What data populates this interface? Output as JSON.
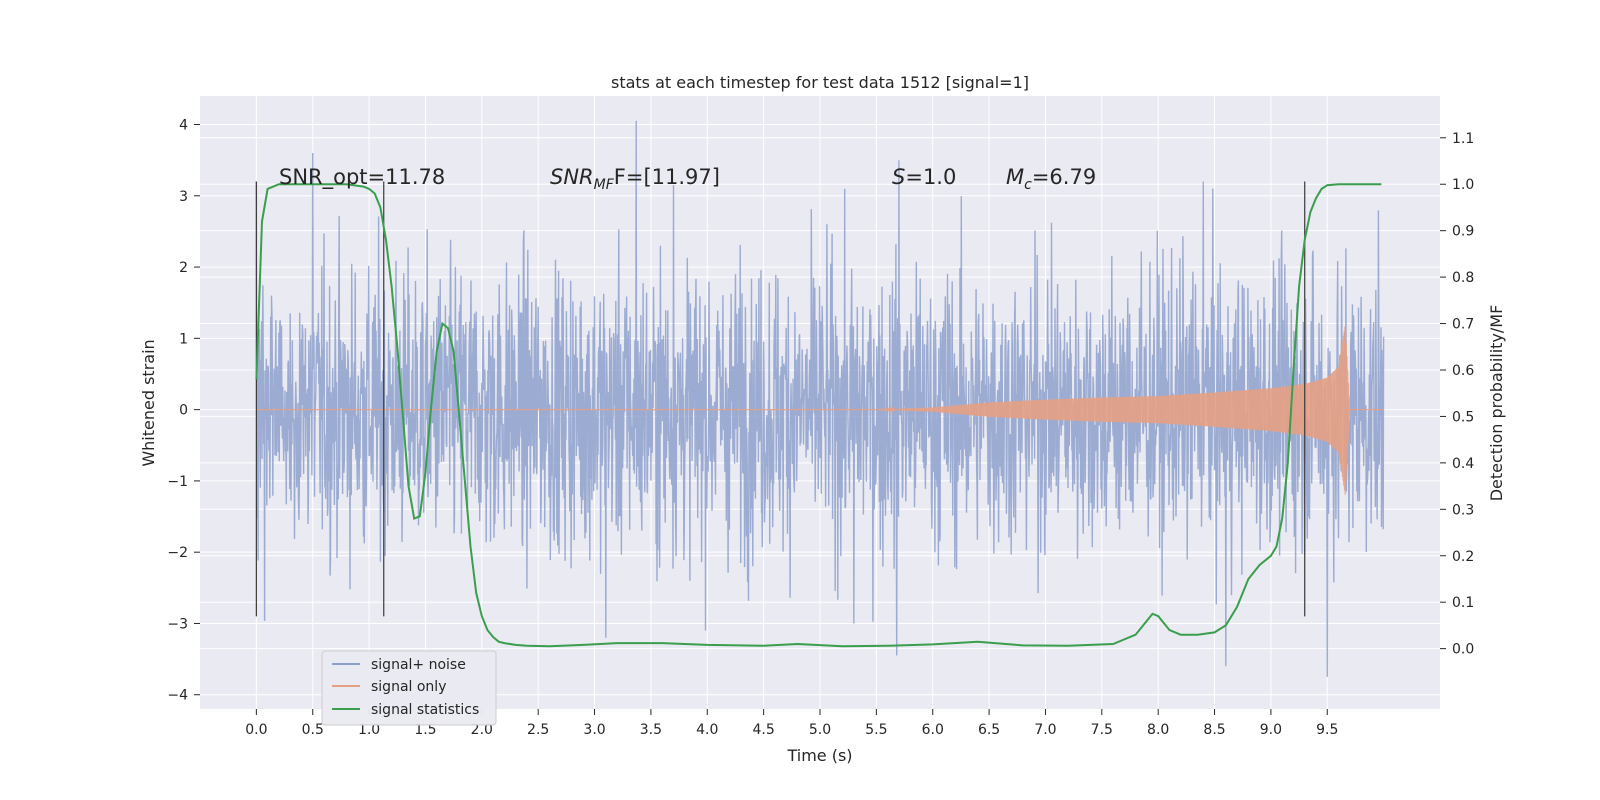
{
  "chart_data": {
    "type": "line",
    "title": "stats at each timestep for test data 1512 [signal=1]",
    "xlabel": "Time (s)",
    "ylabel": "Whitened strain",
    "y2label": "Detection probability/MF",
    "xlim": [
      -0.5,
      10.5
    ],
    "ylim": [
      -4.2,
      4.4
    ],
    "y2lim": [
      -0.13,
      1.19
    ],
    "xticks": [
      "0.0",
      "0.5",
      "1.0",
      "1.5",
      "2.0",
      "2.5",
      "3.0",
      "3.5",
      "4.0",
      "4.5",
      "5.0",
      "5.5",
      "6.0",
      "6.5",
      "7.0",
      "7.5",
      "8.0",
      "8.5",
      "9.0",
      "9.5"
    ],
    "yticks": [
      "4",
      "3",
      "2",
      "1",
      "0",
      "−1",
      "−2",
      "−3",
      "−4"
    ],
    "y2ticks": [
      "1.1",
      "1.0",
      "0.9",
      "0.8",
      "0.7",
      "0.6",
      "0.5",
      "0.4",
      "0.3",
      "0.2",
      "0.1",
      "0.0"
    ],
    "grid": true,
    "legend": {
      "placement": "lower-left",
      "entries": [
        {
          "name": "signal+ noise",
          "color": "#8da0cb"
        },
        {
          "name": "signal only",
          "color": "#e5a084"
        },
        {
          "name": "signal statistics",
          "color": "#3a9e4d"
        }
      ]
    },
    "annotations": {
      "snr_opt": "SNR_opt=11.78",
      "snr_mf_main": "SNR",
      "snr_mf_sub": "MF",
      "snr_mf_rest": "F=[11.97]",
      "s_main": "S",
      "s_rest": "=1.0",
      "mc_main": "M",
      "mc_sub": "c",
      "mc_rest": "=6.79"
    },
    "vertical_lines_x": [
      0.0,
      1.13,
      9.3
    ],
    "vertical_lines_range": [
      -2.9,
      3.2
    ],
    "series": [
      {
        "name": "signal+ noise",
        "color": "#8da0cb",
        "x_range": [
          0.0,
          10.0
        ],
        "envelope_1sigma": 1.37,
        "annotated_extremes": [
          {
            "x": 0.0,
            "y": 3.2
          },
          {
            "x": 0.5,
            "y": 3.6
          },
          {
            "x": 3.37,
            "y": 4.05
          },
          {
            "x": 3.7,
            "y": 3.15
          },
          {
            "x": 5.7,
            "y": 3.5
          },
          {
            "x": 8.4,
            "y": 3.2
          },
          {
            "x": 3.1,
            "y": -3.2
          },
          {
            "x": 5.3,
            "y": -3.0
          },
          {
            "x": 5.68,
            "y": -3.45
          },
          {
            "x": 8.6,
            "y": -3.6
          },
          {
            "x": 9.5,
            "y": -3.75
          }
        ]
      },
      {
        "name": "signal only",
        "color": "#e5a084",
        "type": "chirp",
        "points": [
          {
            "x": 0.0,
            "amp": 0.0
          },
          {
            "x": 5.5,
            "amp": 0.0
          },
          {
            "x": 6.0,
            "amp": 0.03
          },
          {
            "x": 6.5,
            "amp": 0.1
          },
          {
            "x": 7.0,
            "amp": 0.14
          },
          {
            "x": 7.5,
            "amp": 0.17
          },
          {
            "x": 8.0,
            "amp": 0.19
          },
          {
            "x": 8.5,
            "amp": 0.24
          },
          {
            "x": 9.0,
            "amp": 0.3
          },
          {
            "x": 9.3,
            "amp": 0.36
          },
          {
            "x": 9.5,
            "amp": 0.45
          },
          {
            "x": 9.6,
            "amp": 0.6
          },
          {
            "x": 9.66,
            "amp": 1.2
          },
          {
            "x": 9.7,
            "amp": 0.0
          },
          {
            "x": 10.0,
            "amp": 0.0
          }
        ]
      },
      {
        "name": "signal statistics",
        "color": "#3a9e4d",
        "axis": "right",
        "x": [
          0.0,
          0.05,
          0.1,
          0.15,
          0.2,
          0.3,
          0.5,
          0.8,
          0.95,
          1.0,
          1.05,
          1.1,
          1.15,
          1.2,
          1.25,
          1.3,
          1.35,
          1.4,
          1.45,
          1.5,
          1.55,
          1.6,
          1.65,
          1.7,
          1.75,
          1.8,
          1.85,
          1.9,
          1.95,
          2.0,
          2.05,
          2.1,
          2.15,
          2.2,
          2.3,
          2.4,
          2.6,
          2.9,
          3.2,
          3.6,
          4.0,
          4.5,
          4.8,
          5.2,
          5.6,
          6.0,
          6.4,
          6.8,
          7.2,
          7.6,
          7.8,
          7.9,
          7.95,
          8.0,
          8.1,
          8.2,
          8.35,
          8.5,
          8.6,
          8.7,
          8.8,
          8.9,
          9.0,
          9.05,
          9.1,
          9.15,
          9.2,
          9.25,
          9.3,
          9.35,
          9.4,
          9.45,
          9.5,
          9.6,
          9.8,
          9.98
        ],
        "y": [
          0.58,
          0.92,
          0.99,
          0.995,
          1.0,
          1.0,
          1.0,
          1.0,
          0.995,
          0.99,
          0.98,
          0.95,
          0.88,
          0.78,
          0.65,
          0.5,
          0.35,
          0.28,
          0.285,
          0.38,
          0.52,
          0.64,
          0.7,
          0.69,
          0.64,
          0.5,
          0.36,
          0.22,
          0.12,
          0.07,
          0.04,
          0.025,
          0.015,
          0.012,
          0.008,
          0.006,
          0.005,
          0.008,
          0.012,
          0.012,
          0.008,
          0.006,
          0.01,
          0.005,
          0.006,
          0.009,
          0.015,
          0.007,
          0.006,
          0.01,
          0.03,
          0.06,
          0.075,
          0.07,
          0.04,
          0.03,
          0.03,
          0.035,
          0.05,
          0.09,
          0.15,
          0.18,
          0.2,
          0.22,
          0.28,
          0.4,
          0.6,
          0.78,
          0.88,
          0.94,
          0.97,
          0.99,
          0.998,
          1.0,
          1.0,
          1.0
        ]
      }
    ]
  }
}
